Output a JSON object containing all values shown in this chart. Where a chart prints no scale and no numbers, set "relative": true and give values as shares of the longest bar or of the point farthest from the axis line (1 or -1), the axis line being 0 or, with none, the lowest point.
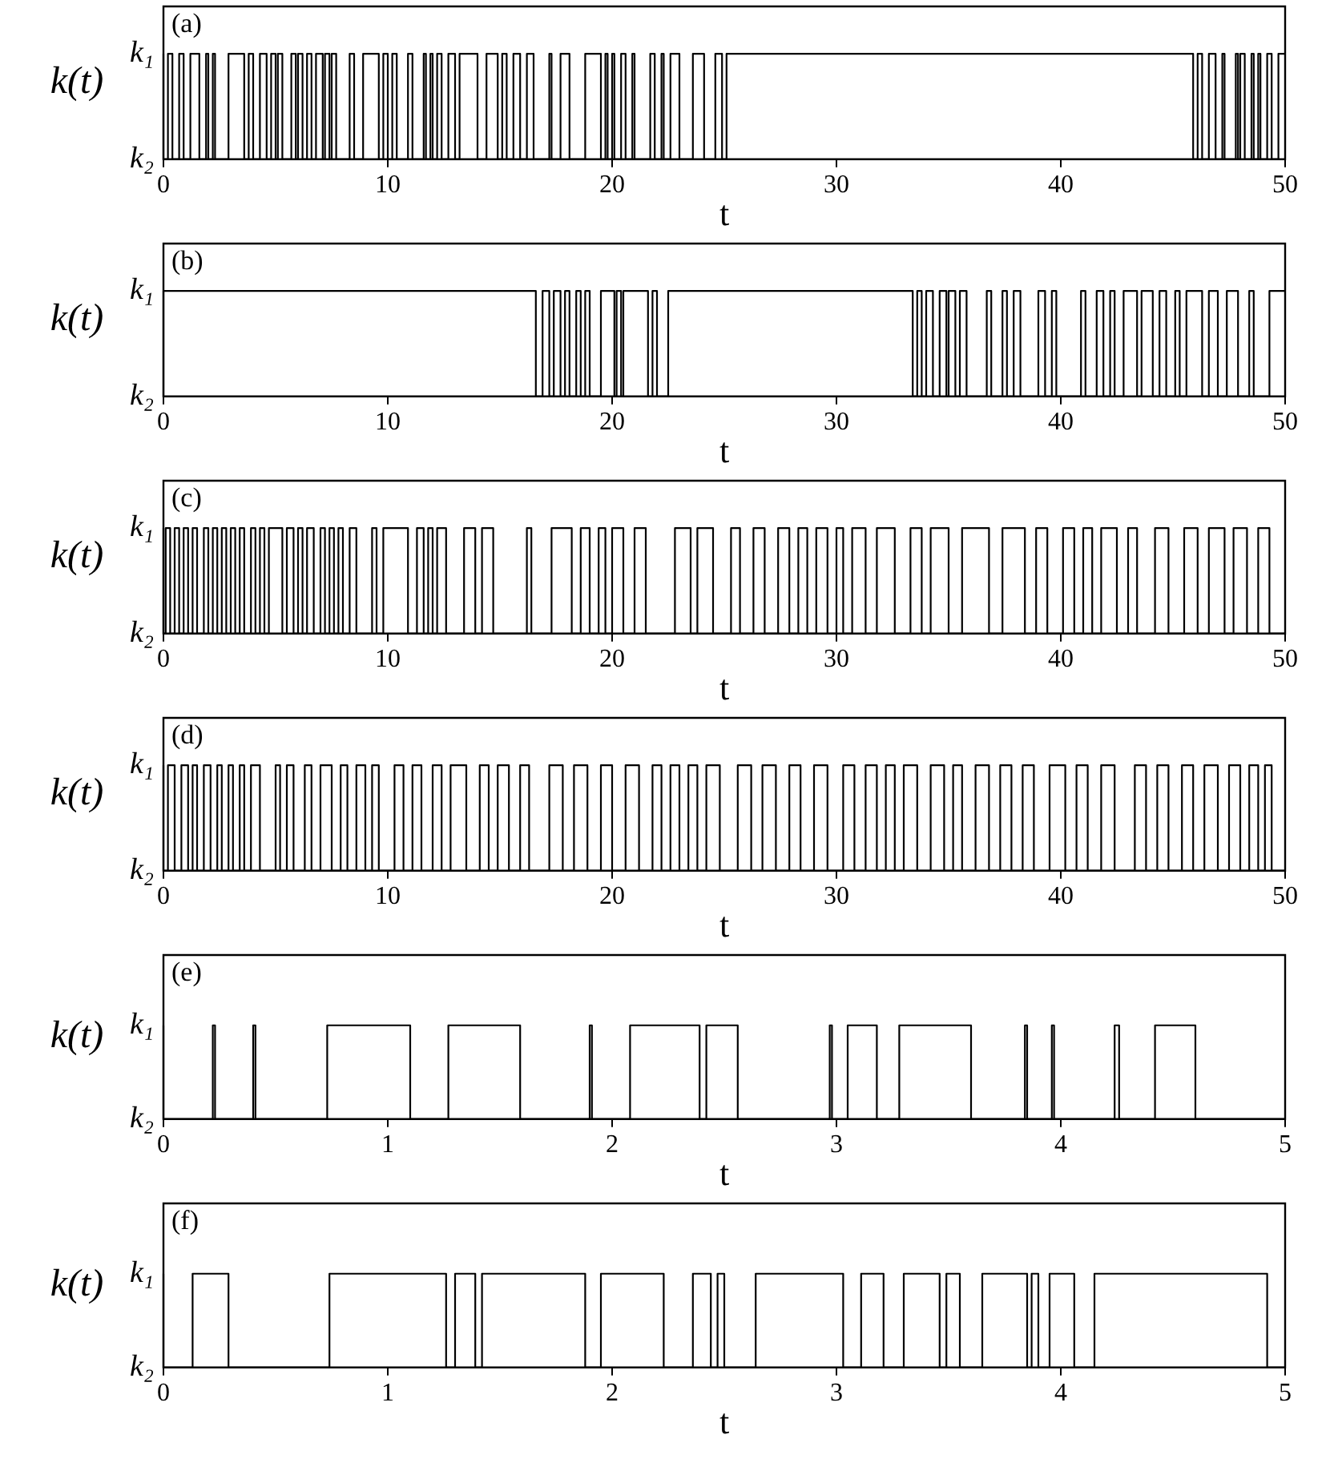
{
  "chart_data": [
    {
      "type": "step",
      "relative": true,
      "annotations": [
        "(a)",
        "k₁",
        "k₂"
      ],
      "xlabel": "t",
      "ylabel": "k(t)",
      "color": "#000000",
      "xlim": [
        0,
        50
      ],
      "xticks": [
        0,
        10,
        20,
        30,
        40,
        50
      ],
      "x": [
        0,
        0.2,
        0.4,
        0.7,
        0.9,
        1.2,
        1.6,
        1.9,
        2.0,
        2.2,
        2.3,
        2.9,
        3.6,
        3.8,
        4.0,
        4.3,
        4.6,
        4.8,
        5.0,
        5.1,
        5.3,
        5.7,
        5.9,
        6.0,
        6.2,
        6.4,
        6.6,
        6.8,
        7.1,
        7.2,
        7.4,
        7.5,
        7.7,
        8.3,
        8.5,
        8.9,
        9.6,
        9.8,
        10.0,
        10.2,
        10.4,
        10.9,
        11.1,
        11.6,
        11.7,
        11.9,
        12.0,
        12.2,
        12.4,
        12.7,
        13.0,
        13.2,
        14.0,
        14.4,
        14.9,
        15.1,
        15.3,
        15.6,
        15.9,
        16.2,
        16.5,
        17.2,
        17.3,
        17.7,
        18.1,
        18.8,
        19.5,
        19.7,
        19.8,
        20.0,
        20.1,
        20.4,
        20.6,
        20.9,
        21.0,
        21.7,
        21.9,
        22.2,
        22.3,
        22.6,
        23.0,
        23.6,
        24.1,
        24.6,
        24.9,
        25.1,
        45.9,
        46.1,
        46.3,
        46.6,
        46.9,
        47.2,
        47.3,
        47.8,
        47.9,
        48.0,
        48.2,
        48.5,
        48.6,
        48.8,
        48.9,
        49.2,
        49.4,
        49.7,
        49.9,
        50
      ],
      "values": [
        1,
        0,
        1,
        0,
        1,
        0,
        1,
        0,
        1,
        0,
        1,
        0,
        1,
        0,
        1,
        0,
        1,
        0,
        1,
        0,
        1,
        0,
        1,
        0,
        1,
        0,
        1,
        0,
        1,
        0,
        1,
        0,
        1,
        0,
        1,
        0,
        1,
        0,
        1,
        0,
        1,
        0,
        1,
        0,
        1,
        0,
        1,
        0,
        1,
        0,
        1,
        0,
        1,
        0,
        1,
        0,
        1,
        0,
        1,
        0,
        1,
        0,
        1,
        0,
        1,
        0,
        1,
        0,
        1,
        0,
        1,
        0,
        1,
        0,
        1,
        0,
        1,
        0,
        1,
        0,
        1,
        0,
        1,
        0,
        1,
        0,
        1,
        0,
        1,
        0,
        1,
        0,
        1,
        0,
        1,
        0,
        1,
        0,
        1,
        0,
        1,
        0,
        1,
        0,
        1,
        1
      ]
    },
    {
      "type": "step",
      "relative": true,
      "annotations": [
        "(b)",
        "k₁",
        "k₂"
      ],
      "xlabel": "t",
      "ylabel": "k(t)",
      "color": "#000000",
      "xlim": [
        0,
        50
      ],
      "xticks": [
        0,
        10,
        20,
        30,
        40,
        50
      ],
      "x": [
        0,
        16.6,
        16.9,
        17.2,
        17.4,
        17.7,
        17.9,
        18.1,
        18.4,
        18.6,
        18.8,
        19.0,
        19.5,
        20.1,
        20.2,
        20.4,
        20.5,
        21.6,
        21.8,
        22.0,
        22.5,
        33.4,
        33.6,
        33.8,
        34.0,
        34.3,
        34.6,
        34.9,
        35.0,
        35.3,
        35.5,
        35.8,
        36.7,
        36.9,
        37.4,
        37.6,
        37.9,
        38.2,
        39.0,
        39.3,
        39.6,
        39.8,
        40.9,
        41.1,
        41.6,
        41.9,
        42.2,
        42.4,
        42.8,
        43.4,
        43.6,
        44.1,
        44.4,
        44.7,
        45.1,
        45.3,
        45.6,
        46.3,
        46.6,
        47.0,
        47.4,
        47.9,
        48.4,
        48.6,
        49.3,
        49.8,
        50
      ],
      "values": [
        0,
        1,
        0,
        1,
        0,
        1,
        0,
        1,
        0,
        1,
        0,
        1,
        0,
        1,
        0,
        1,
        0,
        1,
        0,
        1,
        0,
        1,
        0,
        1,
        0,
        1,
        0,
        1,
        0,
        1,
        0,
        1,
        0,
        1,
        0,
        1,
        0,
        1,
        0,
        1,
        0,
        1,
        0,
        1,
        0,
        1,
        0,
        1,
        0,
        1,
        0,
        1,
        0,
        1,
        0,
        1,
        0,
        1,
        0,
        1,
        0,
        1,
        0,
        1,
        0,
        1,
        1
      ]
    },
    {
      "type": "step",
      "relative": true,
      "annotations": [
        "(c)",
        "k₁",
        "k₂"
      ],
      "xlabel": "t",
      "ylabel": "k(t)",
      "color": "#000000",
      "xlim": [
        0,
        50
      ],
      "xticks": [
        0,
        10,
        20,
        30,
        40,
        50
      ],
      "x": [
        0,
        0.1,
        0.3,
        0.5,
        0.7,
        0.9,
        1.1,
        1.3,
        1.5,
        1.8,
        2.0,
        2.2,
        2.4,
        2.6,
        2.8,
        3.0,
        3.2,
        3.4,
        3.6,
        3.9,
        4.1,
        4.3,
        4.5,
        4.7,
        5.3,
        5.5,
        5.8,
        6.0,
        6.2,
        6.4,
        6.7,
        7.0,
        7.2,
        7.4,
        7.6,
        7.8,
        8.0,
        8.3,
        8.6,
        9.3,
        9.5,
        9.8,
        10.9,
        11.3,
        11.6,
        11.8,
        12.0,
        12.2,
        12.6,
        13.4,
        13.9,
        14.2,
        14.7,
        16.2,
        16.4,
        17.3,
        18.2,
        18.6,
        19.0,
        19.4,
        19.7,
        20.0,
        20.5,
        21.0,
        21.5,
        22.8,
        23.5,
        23.8,
        24.5,
        25.3,
        25.7,
        26.3,
        26.8,
        27.4,
        27.9,
        28.3,
        28.7,
        29.1,
        29.6,
        30.0,
        30.3,
        30.7,
        31.3,
        31.8,
        32.6,
        33.3,
        33.8,
        34.2,
        35.0,
        35.6,
        36.8,
        37.4,
        38.4,
        38.9,
        39.4,
        40.1,
        40.6,
        41.0,
        41.4,
        41.8,
        42.5,
        43.0,
        43.4,
        44.2,
        44.8,
        45.5,
        46.1,
        46.6,
        47.3,
        47.7,
        48.3,
        48.8,
        49.3,
        49.8,
        50
      ],
      "values": [
        1,
        0,
        1,
        0,
        1,
        0,
        1,
        0,
        1,
        0,
        1,
        0,
        1,
        0,
        1,
        0,
        1,
        0,
        1,
        0,
        1,
        0,
        1,
        0,
        1,
        0,
        1,
        0,
        1,
        0,
        1,
        0,
        1,
        0,
        1,
        0,
        1,
        0,
        1,
        0,
        1,
        0,
        1,
        0,
        1,
        0,
        1,
        0,
        1,
        0,
        1,
        0,
        1,
        0,
        1,
        0,
        1,
        0,
        1,
        0,
        1,
        0,
        1,
        0,
        1,
        0,
        1,
        0,
        1,
        0,
        1,
        0,
        1,
        0,
        1,
        0,
        1,
        0,
        1,
        0,
        1,
        0,
        1,
        0,
        1,
        0,
        1,
        0,
        1,
        0,
        1,
        0,
        1,
        0,
        1,
        0,
        1,
        0,
        1,
        0,
        1,
        0,
        1,
        0,
        1,
        0,
        1,
        0,
        1,
        0,
        1,
        0,
        1,
        0,
        0
      ]
    },
    {
      "type": "step",
      "relative": true,
      "annotations": [
        "(d)",
        "k₁",
        "k₂"
      ],
      "xlabel": "t",
      "ylabel": "k(t)",
      "color": "#000000",
      "xlim": [
        0,
        50
      ],
      "xticks": [
        0,
        10,
        20,
        30,
        40,
        50
      ],
      "x": [
        0,
        0.2,
        0.5,
        0.8,
        1.1,
        1.3,
        1.5,
        1.8,
        2.1,
        2.4,
        2.6,
        2.9,
        3.1,
        3.4,
        3.6,
        3.9,
        4.3,
        5.0,
        5.2,
        5.5,
        5.8,
        6.3,
        6.6,
        7.0,
        7.5,
        7.9,
        8.2,
        8.6,
        9.0,
        9.3,
        9.6,
        10.3,
        10.7,
        11.1,
        11.5,
        12.0,
        12.4,
        12.8,
        13.5,
        14.1,
        14.5,
        14.9,
        15.4,
        15.9,
        16.3,
        17.2,
        17.8,
        18.3,
        18.9,
        19.5,
        20.0,
        20.6,
        21.2,
        21.8,
        22.2,
        22.6,
        23.0,
        23.4,
        23.8,
        24.2,
        24.8,
        25.6,
        26.2,
        26.7,
        27.3,
        27.9,
        28.4,
        29.0,
        29.6,
        30.3,
        30.8,
        31.3,
        31.8,
        32.2,
        32.6,
        33.0,
        33.6,
        34.2,
        34.8,
        35.2,
        35.6,
        36.2,
        36.8,
        37.3,
        37.8,
        38.3,
        38.8,
        39.5,
        40.2,
        40.7,
        41.2,
        41.8,
        42.4,
        43.3,
        43.8,
        44.3,
        44.8,
        45.4,
        45.9,
        46.4,
        47.0,
        47.5,
        48.0,
        48.4,
        48.8,
        49.1,
        49.4,
        49.7,
        50
      ],
      "values": [
        1,
        0,
        1,
        0,
        1,
        0,
        1,
        0,
        1,
        0,
        1,
        0,
        1,
        0,
        1,
        0,
        1,
        0,
        1,
        0,
        1,
        0,
        1,
        0,
        1,
        0,
        1,
        0,
        1,
        0,
        1,
        0,
        1,
        0,
        1,
        0,
        1,
        0,
        1,
        0,
        1,
        0,
        1,
        0,
        1,
        0,
        1,
        0,
        1,
        0,
        1,
        0,
        1,
        0,
        1,
        0,
        1,
        0,
        1,
        0,
        1,
        0,
        1,
        0,
        1,
        0,
        1,
        0,
        1,
        0,
        1,
        0,
        1,
        0,
        1,
        0,
        1,
        0,
        1,
        0,
        1,
        0,
        1,
        0,
        1,
        0,
        1,
        0,
        1,
        0,
        1,
        0,
        1,
        0,
        1,
        0,
        1,
        0,
        1,
        0,
        1,
        0,
        1,
        0,
        1,
        0,
        1,
        0,
        0
      ]
    },
    {
      "type": "step",
      "relative": true,
      "annotations": [
        "(e)",
        "k₁",
        "k₂"
      ],
      "xlabel": "t",
      "ylabel": "k(t)",
      "color": "#000000",
      "xlim": [
        0,
        5
      ],
      "xticks": [
        0,
        1,
        2,
        3,
        4,
        5
      ],
      "x": [
        0,
        0.22,
        0.23,
        0.4,
        0.41,
        0.73,
        1.1,
        1.27,
        1.59,
        1.9,
        1.91,
        2.08,
        2.39,
        2.42,
        2.56,
        2.97,
        2.98,
        3.05,
        3.18,
        3.28,
        3.6,
        3.84,
        3.85,
        3.96,
        3.97,
        4.24,
        4.26,
        4.42,
        4.6,
        4.61,
        5
      ],
      "values": [
        1,
        0,
        1,
        0,
        1,
        0,
        1,
        0,
        1,
        0,
        1,
        0,
        1,
        0,
        1,
        0,
        1,
        0,
        1,
        0,
        1,
        0,
        1,
        0,
        1,
        0,
        1,
        0,
        1,
        0,
        0
      ]
    },
    {
      "type": "step",
      "relative": true,
      "annotations": [
        "(f)",
        "k₁",
        "k₂"
      ],
      "xlabel": "t",
      "ylabel": "k(t)",
      "color": "#000000",
      "xlim": [
        0,
        5
      ],
      "xticks": [
        0,
        1,
        2,
        3,
        4,
        5
      ],
      "x": [
        0,
        0.13,
        0.29,
        0.74,
        1.26,
        1.3,
        1.39,
        1.42,
        1.88,
        1.95,
        2.23,
        2.36,
        2.44,
        2.47,
        2.5,
        2.64,
        3.03,
        3.11,
        3.21,
        3.3,
        3.46,
        3.49,
        3.55,
        3.65,
        3.85,
        3.87,
        3.9,
        3.95,
        4.06,
        4.15,
        4.92,
        4.95,
        5
      ],
      "values": [
        1,
        0,
        1,
        0,
        1,
        0,
        1,
        0,
        1,
        0,
        1,
        0,
        1,
        0,
        1,
        0,
        1,
        0,
        1,
        0,
        1,
        0,
        1,
        0,
        1,
        0,
        1,
        0,
        1,
        0,
        1,
        0,
        0
      ]
    }
  ]
}
